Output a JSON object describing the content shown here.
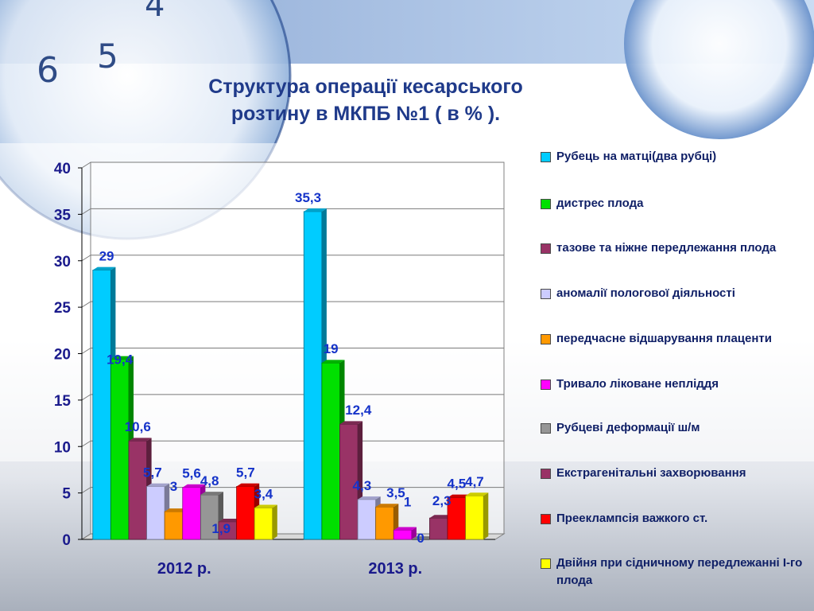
{
  "slide": {
    "title_line1": "Структура операції кесарського",
    "title_line2": "розтину в МКПБ №1 ( в % )."
  },
  "colors": {
    "title": "#1f3a8a",
    "axis_text": "#1a1a8c",
    "data_label": "#1533c9",
    "grid": "#7a7a7a"
  },
  "chart_data": {
    "type": "bar",
    "categories": [
      "2012 р.",
      "2013 р."
    ],
    "ylim": [
      0,
      40
    ],
    "yticks": [
      0,
      5,
      10,
      15,
      20,
      25,
      30,
      35,
      40
    ],
    "grid": true,
    "legend_position": "right",
    "series": [
      {
        "name": "Рубець на матці(два рубці)",
        "color": "#00ccff",
        "values": [
          29,
          35.3
        ],
        "labels": [
          "29",
          "35,3"
        ]
      },
      {
        "name": "дистрес плода",
        "color": "#00e000",
        "values": [
          19.4,
          19
        ],
        "labels": [
          "19,4",
          "19"
        ]
      },
      {
        "name": "тазове та ніжне передлежання плода",
        "color": "#993366",
        "values": [
          10.6,
          12.4
        ],
        "labels": [
          "10,6",
          "12,4"
        ]
      },
      {
        "name": "аномалії пологової діяльності",
        "color": "#ccccff",
        "values": [
          5.7,
          4.3
        ],
        "labels": [
          "5,7",
          "4,3"
        ]
      },
      {
        "name": "передчасне відшарування плаценти",
        "color": "#ff9900",
        "values": [
          3,
          3.5
        ],
        "labels": [
          "3",
          "3,5"
        ]
      },
      {
        "name": "Тривало ліковане непліддя",
        "color": "#ff00ff",
        "values": [
          5.6,
          1
        ],
        "labels": [
          "5,6",
          "1"
        ]
      },
      {
        "name": "Рубцеві деформації ш/м",
        "color": "#969696",
        "values": [
          4.8,
          0
        ],
        "labels": [
          "4,8",
          "0"
        ]
      },
      {
        "name": "Екстрагенітальні захворювання",
        "color": "#993366",
        "values": [
          1.9,
          2.3
        ],
        "labels": [
          "1,9",
          "2,3"
        ]
      },
      {
        "name": "Прееклампсія важкого ст.",
        "color": "#ff0000",
        "values": [
          5.7,
          4.5
        ],
        "labels": [
          "5,7",
          "4,5"
        ]
      },
      {
        "name": "Двійня при сідничному передлежанні І-го плода",
        "color": "#ffff00",
        "values": [
          3.4,
          4.7
        ],
        "labels": [
          "3,4",
          "4,7"
        ]
      }
    ]
  }
}
